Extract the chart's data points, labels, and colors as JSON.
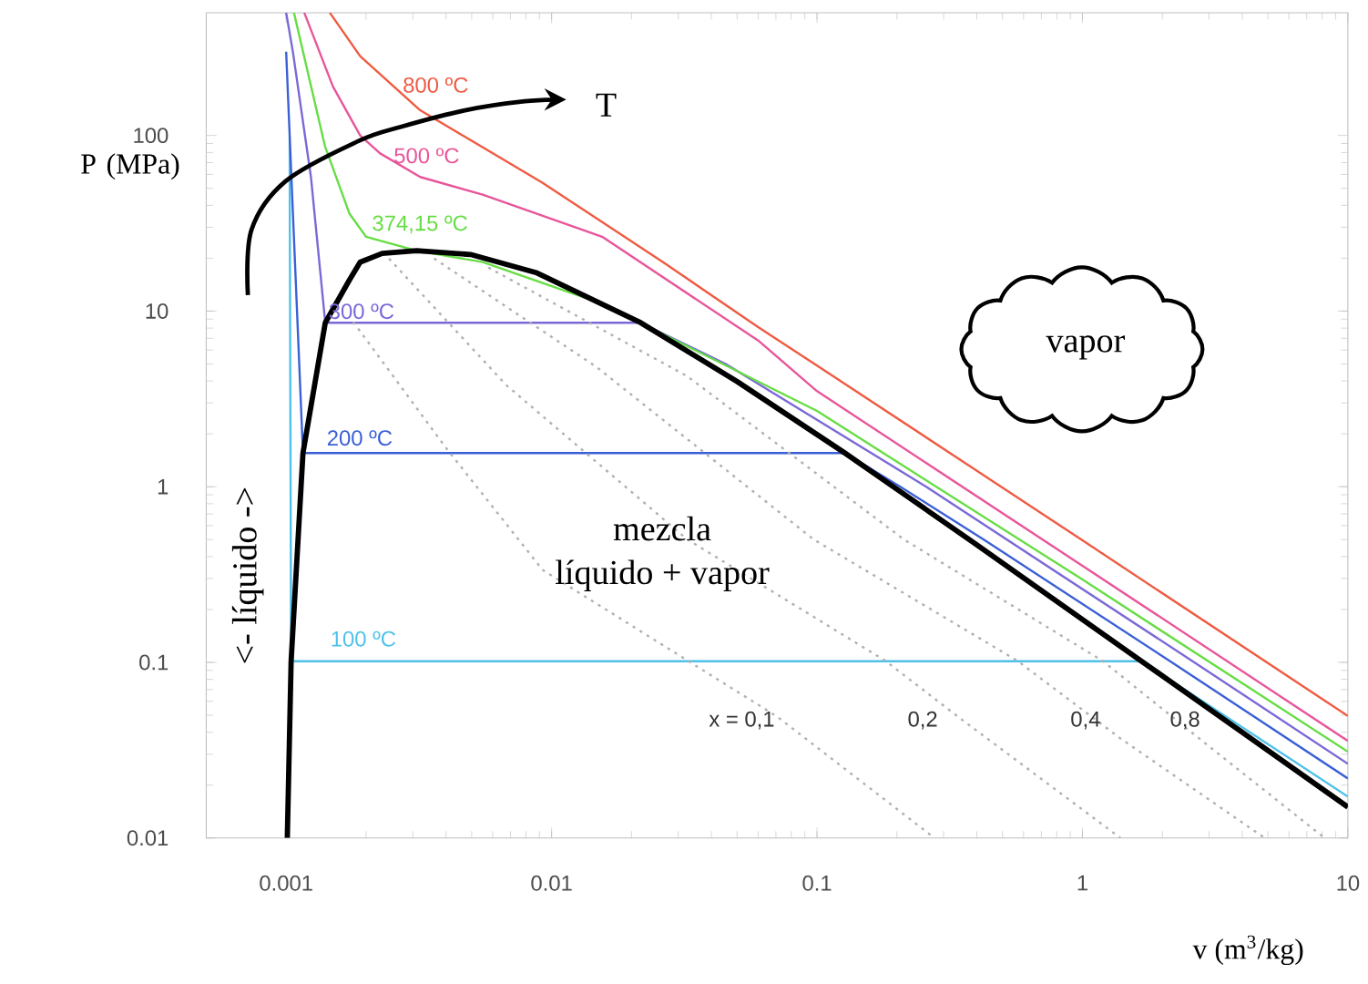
{
  "chart_data": {
    "type": "line",
    "xlabel": "v (m$^{3}$/kg)",
    "ylabel": "P (MPa)",
    "xlim": [
      0.0005,
      10
    ],
    "ylim": [
      0.01,
      500
    ],
    "xticks": [
      0.001,
      0.01,
      0.1,
      1,
      10
    ],
    "yticks": [
      0.01,
      0.1,
      1,
      10,
      100
    ],
    "log": "xy",
    "series": [
      {
        "name": "100 ºC",
        "color": "#4ec1ea",
        "x": [
          0.00103,
          0.001044,
          1.672,
          10
        ],
        "values": [
          100,
          0.1014,
          0.1014,
          0.0172
        ]
      },
      {
        "name": "200 ºC",
        "color": "#3a5fd6",
        "x": [
          0.001,
          0.001157,
          0.1274,
          0.206,
          0.4249,
          2.172,
          10
        ],
        "values": [
          300,
          1.554,
          1.554,
          1.0,
          0.5,
          0.1,
          0.0218
        ]
      },
      {
        "name": "300 ºC",
        "color": "#7b68d8",
        "x": [
          0.001,
          0.00106,
          0.00124,
          0.001404,
          0.02167,
          0.04532,
          0.2579,
          2.639,
          10
        ],
        "values": [
          500,
          300,
          58,
          8.58,
          8.58,
          5,
          1,
          0.1,
          0.02645
        ]
      },
      {
        "name": "374,15 ºC",
        "color": "#66dd44",
        "x": [
          0.00107,
          0.0014,
          0.00173,
          0.002,
          0.0031,
          0.0055,
          0.0155,
          0.1,
          1,
          10
        ],
        "values": [
          500,
          87,
          36,
          26.5,
          22.1,
          19,
          11,
          2.7,
          0.296,
          0.031
        ]
      },
      {
        "name": "500 ºC",
        "color": "#e8559a",
        "x": [
          0.00117,
          0.0015,
          0.0019,
          0.00226,
          0.0032,
          0.0055,
          0.0155,
          0.06,
          0.1,
          1,
          10
        ],
        "values": [
          500,
          190,
          100,
          79,
          58,
          46,
          26.5,
          6.8,
          3.5,
          0.355,
          0.0357
        ]
      },
      {
        "name": "800 ºC",
        "color": "#ef5a41",
        "x": [
          0.00146,
          0.0019,
          0.0032,
          0.0092,
          0.0263,
          0.06,
          0.1,
          1,
          10
        ],
        "values": [
          500,
          283,
          139,
          54,
          19,
          8.1,
          4.9,
          0.495,
          0.0495
        ]
      },
      {
        "color": "#000000",
        "x": [
          0.00101,
          0.001044,
          0.001157,
          0.001404,
          0.00173,
          0.0019,
          0.0023,
          0.0031,
          0.00495,
          0.00881,
          0.02167,
          0.05,
          0.1274,
          0.3928,
          1.672,
          4.131,
          10
        ],
        "values": [
          0.01,
          0.1014,
          1.554,
          8.58,
          15,
          19,
          21.3,
          22.06,
          21.0,
          16.5,
          8.58,
          3.97,
          1.554,
          0.476,
          0.1014,
          0.0386,
          0.015
        ]
      },
      {
        "color": "#b0b0b0",
        "line_style": "dotted",
        "x": [
          0.00179,
          0.00403,
          0.00925,
          0.0709,
          0.277
        ],
        "values": [
          8.67,
          1.64,
          0.336,
          0.049,
          0.01
        ]
      },
      {
        "color": "#b0b0b0",
        "line_style": "dotted",
        "x": [
          0.00244,
          0.00676,
          0.0324,
          0.181,
          0.34,
          1.39
        ],
        "values": [
          19.9,
          3.78,
          0.502,
          0.102,
          0.049,
          0.01
        ]
      },
      {
        "color": "#b0b0b0",
        "line_style": "dotted",
        "x": [
          0.00361,
          0.0148,
          0.0969,
          0.569,
          1.39,
          4.86
        ],
        "values": [
          19.9,
          4.79,
          0.502,
          0.102,
          0.0369,
          0.01
        ]
      },
      {
        "color": "#b0b0b0",
        "line_style": "dotted",
        "x": [
          0.00578,
          0.0324,
          0.212,
          1.19,
          3.04,
          8.17
        ],
        "values": [
          17.7,
          4.26,
          0.502,
          0.102,
          0.0327,
          0.01
        ]
      }
    ],
    "annotations": [
      "mezcla",
      "líquido + vapor",
      "vapor",
      "<-  líquido  ->",
      "T",
      "x = 0,1",
      "0,2",
      "0,4",
      "0,8"
    ]
  }
}
